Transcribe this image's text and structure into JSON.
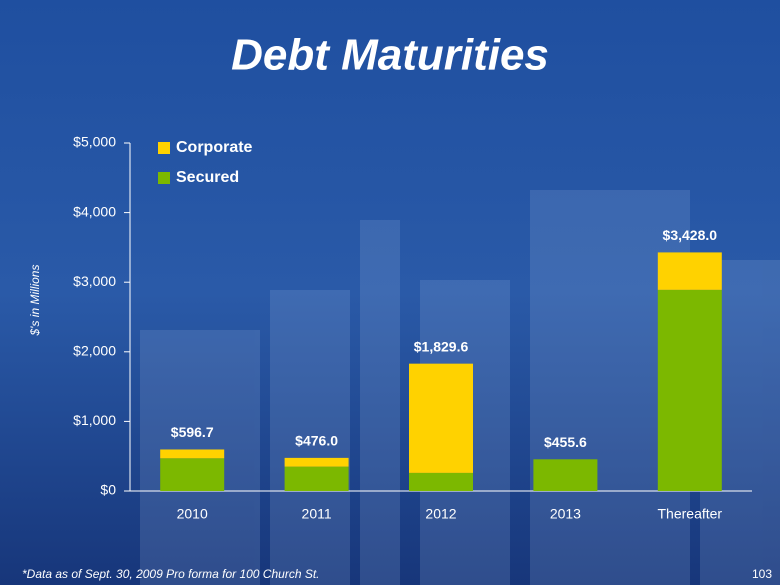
{
  "title": "Debt Maturities",
  "footnote": "*Data as of Sept. 30, 2009 Pro forma for 100 Church St.",
  "page_number": "103",
  "chart_data": {
    "type": "stacked_bar",
    "y_axis_label": "$'s in Millions",
    "categories": [
      "2010",
      "2011",
      "2012",
      "2013",
      "Thereafter"
    ],
    "series": [
      {
        "name": "Secured",
        "color": "#7cb800",
        "values": [
          470,
          350,
          260,
          455.6,
          2890
        ]
      },
      {
        "name": "Corporate",
        "color": "#ffd200",
        "values": [
          126.7,
          126,
          1569.6,
          0,
          538
        ]
      }
    ],
    "totals": [
      596.7,
      476.0,
      1829.6,
      455.6,
      3428.0
    ],
    "total_labels": [
      "$596.7",
      "$476.0",
      "$1,829.6",
      "$455.6",
      "$3,428.0"
    ],
    "ylim": [
      0,
      5000
    ],
    "yticks": [
      {
        "value": 0,
        "label": "$0"
      },
      {
        "value": 1000,
        "label": "$1,000"
      },
      {
        "value": 2000,
        "label": "$2,000"
      },
      {
        "value": 3000,
        "label": "$3,000"
      },
      {
        "value": 4000,
        "label": "$4,000"
      },
      {
        "value": 5000,
        "label": "$5,000"
      }
    ],
    "legend": "top-left",
    "grid": false
  }
}
